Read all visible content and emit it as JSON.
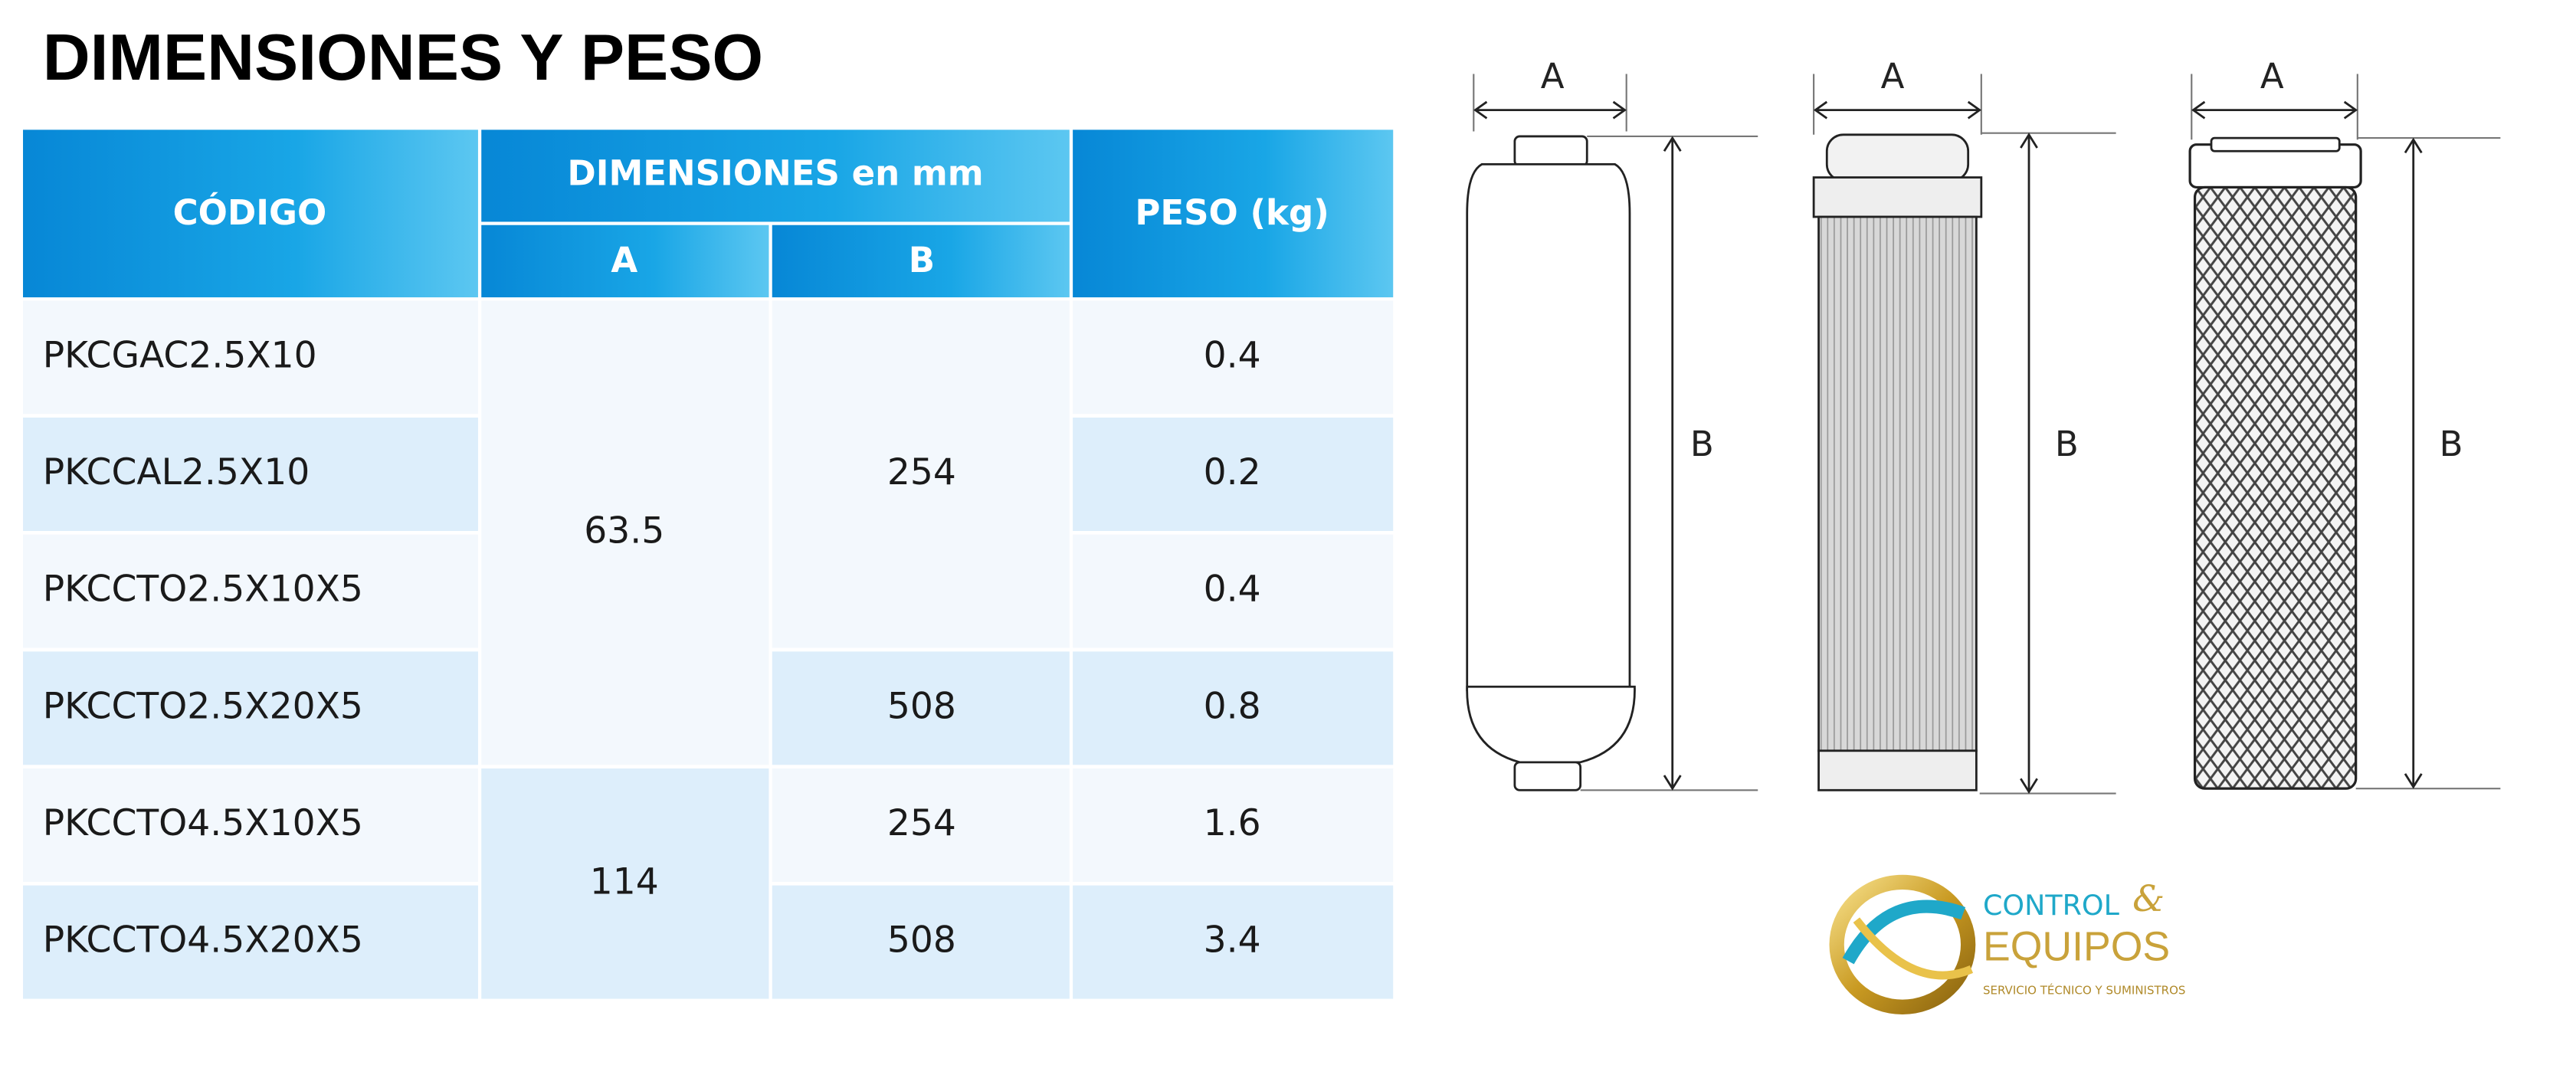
{
  "header": {
    "title": "DIMENSIONES Y PESO"
  },
  "table": {
    "headers": {
      "code": "CÓDIGO",
      "dimensions": "DIMENSIONES en mm",
      "a": "A",
      "b": "B",
      "weight": "PESO (kg)"
    },
    "codes": [
      "PKCGAC2.5X10",
      "PKCCAL2.5X10",
      "PKCCTO2.5X10X5",
      "PKCCTO2.5X20X5",
      "PKCCTO4.5X10X5",
      "PKCCTO4.5X20X5"
    ],
    "a_cells": [
      63.5,
      114
    ],
    "b_cells": [
      254,
      508,
      254,
      508
    ],
    "weights": [
      0.4,
      0.2,
      0.4,
      0.8,
      1.6,
      3.4
    ]
  },
  "diagrams": [
    {
      "a": "A",
      "b": "B"
    },
    {
      "a": "A",
      "b": "B"
    },
    {
      "a": "A",
      "b": "B"
    }
  ],
  "logo": {
    "line1": "CONTROL",
    "amp": "&",
    "line2": "EQUIPOS",
    "tagline": "SERVICIO TÉCNICO Y SUMINISTROS"
  }
}
